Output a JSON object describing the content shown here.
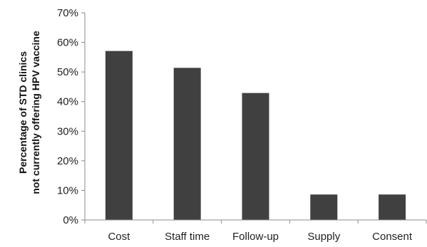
{
  "chart_data": {
    "type": "bar",
    "categories": [
      "Cost",
      "Staff time",
      "Follow-up",
      "Supply",
      "Consent"
    ],
    "values": [
      57.1,
      51.4,
      42.9,
      8.6,
      8.6
    ],
    "title": "",
    "xlabel": "",
    "ylabel_lines": [
      "Percentage of STD clinics",
      "not currently offering HPV vaccine"
    ],
    "ylim": [
      0,
      70
    ],
    "yticks": [
      0,
      10,
      20,
      30,
      40,
      50,
      60,
      70
    ],
    "ytick_labels": [
      "0%",
      "10%",
      "20%",
      "30%",
      "40%",
      "50%",
      "60%",
      "70%"
    ],
    "grid": false,
    "legend": "none",
    "bar_color": "#404040",
    "axis_color": "#8c8c8c"
  }
}
